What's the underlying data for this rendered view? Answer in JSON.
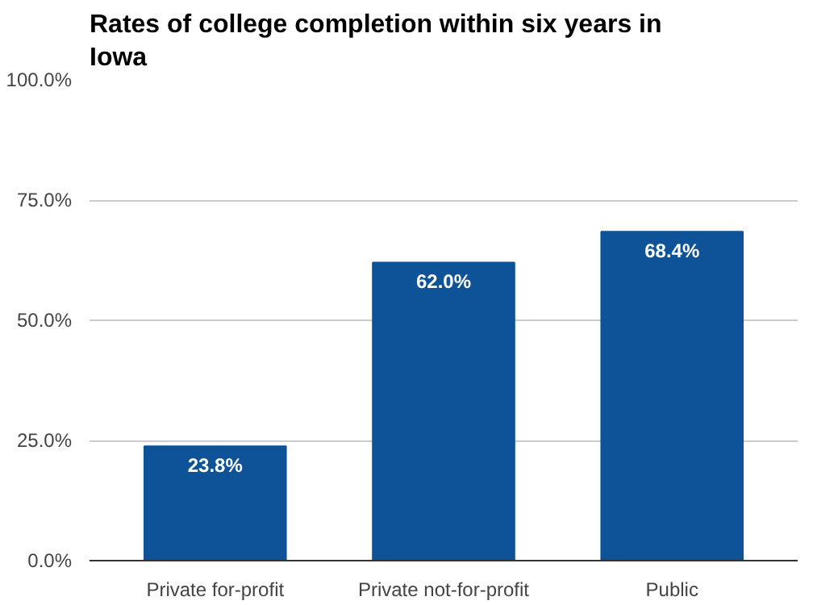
{
  "chart_data": {
    "type": "bar",
    "title": "Rates of college completion within six years in Iowa",
    "categories": [
      "Private for-profit",
      "Private not-for-profit",
      "Public"
    ],
    "values": [
      23.8,
      62.0,
      68.4
    ],
    "color": "#0e5298",
    "value_labels": [
      "23.8%",
      "62.0%",
      "68.4%"
    ],
    "ylim": [
      0,
      100
    ],
    "yticks": [
      {
        "value": 0,
        "label": "0.0%"
      },
      {
        "value": 25,
        "label": "25.0%"
      },
      {
        "value": 50,
        "label": "50.0%"
      },
      {
        "value": 75,
        "label": "75.0%"
      },
      {
        "value": 100,
        "label": "100.0%"
      }
    ],
    "grid": "y"
  }
}
